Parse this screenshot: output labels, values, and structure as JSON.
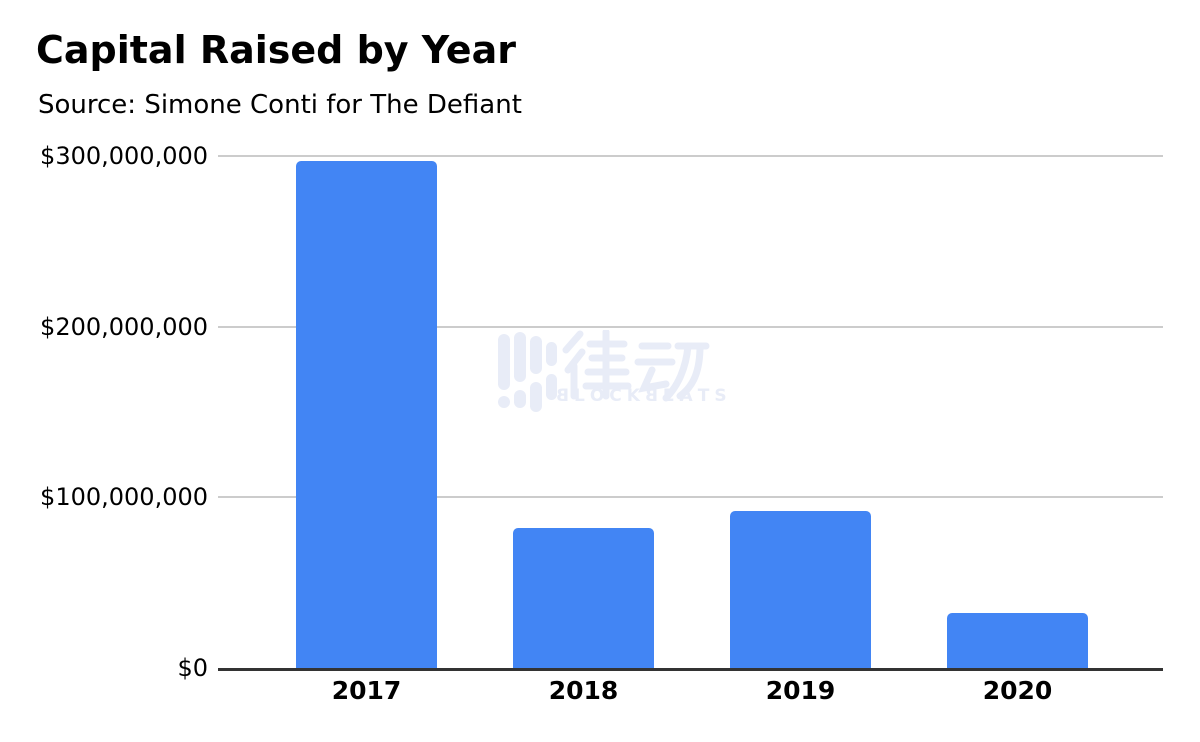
{
  "page": {
    "background": "#ffffff"
  },
  "chart_data": {
    "type": "bar",
    "title": "Capital Raised by Year",
    "subtitle": "Source: Simone Conti for The Defiant",
    "categories": [
      "2017",
      "2018",
      "2019",
      "2020"
    ],
    "values": [
      297000000,
      82000000,
      92000000,
      32000000
    ],
    "xlabel": "",
    "ylabel": "",
    "ylim": [
      0,
      300000000
    ],
    "yticks": [
      {
        "value": 0,
        "label": "$0"
      },
      {
        "value": 100000000,
        "label": "$100,000,000"
      },
      {
        "value": 200000000,
        "label": "$200,000,000"
      },
      {
        "value": 300000000,
        "label": "$300,000,000"
      }
    ],
    "grid": true,
    "legend_position": "none",
    "bar_color": "#4285f4",
    "gridline_color": "#cccccc",
    "axis_color": "#333333",
    "text_color": "#000000",
    "watermark": {
      "logo_icon": "equalizer-bars-icon",
      "logo_text": "律动",
      "brand_text": "BLOCKBEATS",
      "color": "#e8ecf7"
    }
  }
}
